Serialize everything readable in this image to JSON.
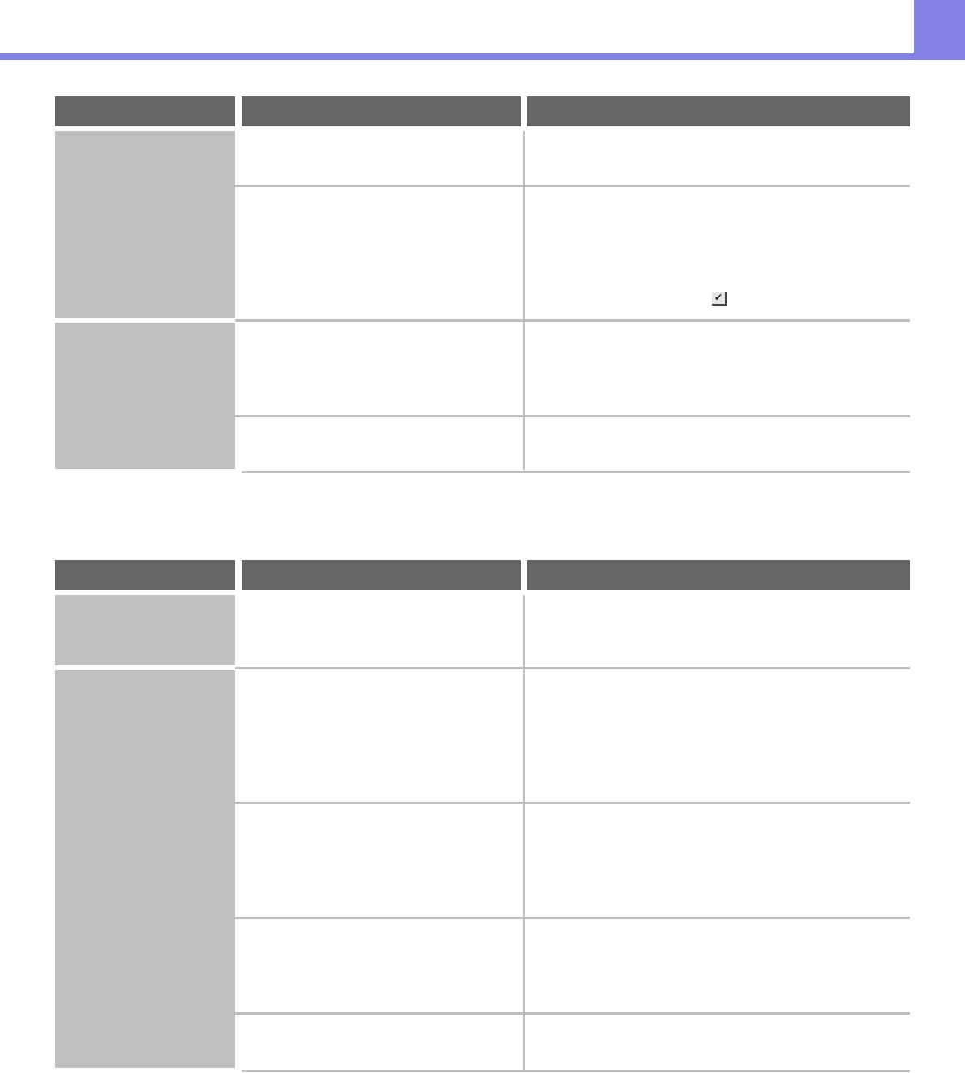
{
  "colors": {
    "accent": "#8383e6",
    "header_cell": "#666666",
    "group_cell": "#bfbfbf"
  },
  "icons": {
    "check_button": "checkmark-icon",
    "check_glyph": "✔"
  }
}
